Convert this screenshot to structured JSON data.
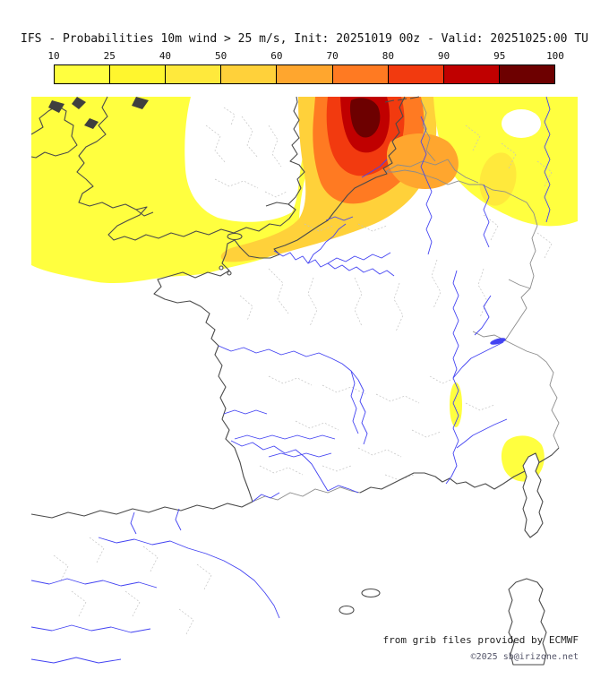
{
  "header": {
    "title": "IFS - Probabilities 10m wind > 25 m/s, Init: 20251019 00z - Valid: 20251025:00 TU",
    "model": "IFS",
    "parameter": "10m wind > 25 m/s",
    "init": "20251019 00z",
    "valid": "20251025:00 TU"
  },
  "colorbar": {
    "tick_labels": [
      "10",
      "25",
      "40",
      "50",
      "60",
      "70",
      "80",
      "90",
      "95",
      "100"
    ],
    "segment_colors": [
      "#ffff3f",
      "#fff62e",
      "#ffe93c",
      "#ffd13a",
      "#ffa62e",
      "#ff7a22",
      "#f23a0f",
      "#c00000",
      "#6d0000"
    ],
    "border_color": "#000000"
  },
  "map": {
    "credit_line1": "from grib files provided by ECMWF",
    "credit_line2": "©2025 sb@irizone.net",
    "colors": {
      "coastline": "#4a4a4a",
      "country_border": "#8c8c8c",
      "region_border": "#c2c2c2",
      "river": "#4343f2",
      "lake": "#4343f2",
      "dark_terrain": "#3f3f3f",
      "white": "#ffffff",
      "prob_10_25": "#ffff3f",
      "prob_25_40": "#fff62e",
      "prob_40_50": "#ffe93c",
      "prob_50_60": "#ffd13a",
      "prob_60_70": "#ffa62e",
      "prob_70_80": "#ff7a22",
      "prob_80_90": "#f23a0f",
      "prob_90_95": "#c00000",
      "prob_95_100": "#6d0000"
    }
  }
}
